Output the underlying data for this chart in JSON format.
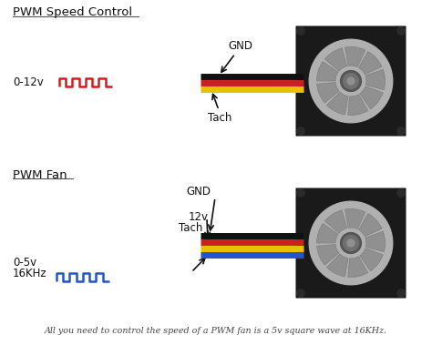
{
  "bg_color": "#ffffff",
  "title1": "PWM Speed Control",
  "title2": "PWM Fan",
  "footer": "All you need to control the speed of a PWM fan is a 5v square wave at 16KHz.",
  "wire_colors_top": [
    "#111111",
    "#cc2020",
    "#e8c000"
  ],
  "wire_colors_bot": [
    "#111111",
    "#cc2020",
    "#e8c000",
    "#2255cc"
  ],
  "label_gnd_top": "GND",
  "label_0_12": "0-12v",
  "label_tach_top": "Tach",
  "label_gnd_bot": "GND",
  "label_12v": "12v",
  "label_tach_bot": "Tach",
  "label_0_5": "0-5v",
  "label_16khz": "16KHz",
  "pwm_color_top": "#cc2020",
  "pwm_color_bot": "#2255cc",
  "fan_frame_color": "#1a1a1a",
  "fan_bg_color": "#b0b0b0",
  "fan_blade_color": "#909090",
  "fan_hub_color": "#707070"
}
